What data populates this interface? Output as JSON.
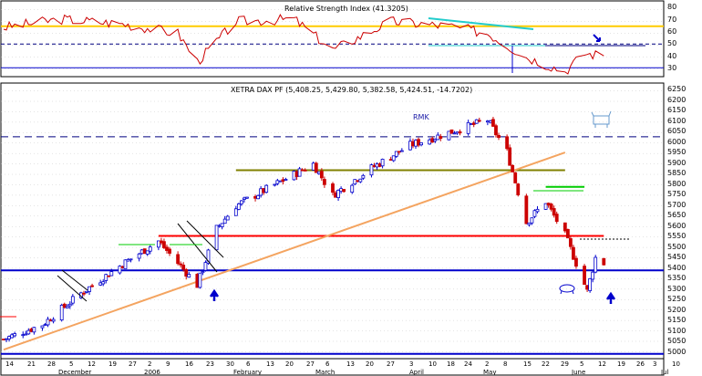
{
  "colors": {
    "rsi_line": "#cc0000",
    "candle_up": "#0000cc",
    "candle_down": "#cc0000",
    "trend_orange": "#f4a460",
    "olive_line": "#808000",
    "resistance_red": "#ff0000",
    "support_blue": "#0000cc",
    "green_line": "#00cc00",
    "cyan_line": "#22cccc",
    "yellow_line": "#ffcc00",
    "grid": "#c8c8c8"
  },
  "rsi_panel": {
    "title": "Relative Strength Index (41.3205)",
    "ticks": [
      "80",
      "70",
      "60",
      "50",
      "40",
      "30"
    ]
  },
  "price_panel": {
    "title": "XETRA DAX PF (5,408.25, 5,429.80, 5,382.58, 5,424.51, -14.7202)",
    "ticks": [
      "6250",
      "6200",
      "6150",
      "6100",
      "6050",
      "6000",
      "5950",
      "5900",
      "5850",
      "5800",
      "5750",
      "5700",
      "5650",
      "5600",
      "5550",
      "5500",
      "5450",
      "5400",
      "5350",
      "5300",
      "5250",
      "5200",
      "5150",
      "5100",
      "5050",
      "5000"
    ],
    "annotations": {
      "rmk": "RMK"
    }
  },
  "x_axis": {
    "day_labels": [
      "14",
      "21",
      "28",
      "5",
      "12",
      "19",
      "27",
      "2",
      "9",
      "16",
      "23",
      "30",
      "6",
      "13",
      "20",
      "27",
      "6",
      "13",
      "20",
      "27",
      "3",
      "10",
      "18",
      "24",
      "2",
      "8",
      "15",
      "22",
      "29",
      "5",
      "12",
      "19",
      "26",
      "3",
      "10"
    ],
    "month_labels": [
      "December",
      "2006",
      "February",
      "March",
      "April",
      "May",
      "June",
      "Jul"
    ]
  },
  "chart_data": {
    "type": "candlestick",
    "title": "XETRA DAX PF (5,408.25, 5,429.80, 5,382.58, 5,424.51, -14.7202)",
    "x_range": [
      "2005-11-14",
      "2006-07-10"
    ],
    "price_range": [
      4980,
      6270
    ],
    "price_checkpoints": [
      {
        "date": "2005-11-14",
        "close": 5060
      },
      {
        "date": "2005-11-28",
        "close": 5130
      },
      {
        "date": "2005-12-12",
        "close": 5280
      },
      {
        "date": "2005-12-27",
        "close": 5420
      },
      {
        "date": "2006-01-09",
        "close": 5530
      },
      {
        "date": "2006-01-23",
        "close": 5320
      },
      {
        "date": "2006-01-30",
        "close": 5590
      },
      {
        "date": "2006-02-06",
        "close": 5700
      },
      {
        "date": "2006-02-20",
        "close": 5800
      },
      {
        "date": "2006-03-06",
        "close": 5900
      },
      {
        "date": "2006-03-13",
        "close": 5750
      },
      {
        "date": "2006-03-27",
        "close": 5880
      },
      {
        "date": "2006-04-10",
        "close": 5990
      },
      {
        "date": "2006-04-24",
        "close": 6050
      },
      {
        "date": "2006-05-08",
        "close": 6110
      },
      {
        "date": "2006-05-15",
        "close": 5960
      },
      {
        "date": "2006-05-22",
        "close": 5620
      },
      {
        "date": "2006-05-29",
        "close": 5720
      },
      {
        "date": "2006-06-05",
        "close": 5560
      },
      {
        "date": "2006-06-13",
        "close": 5290
      },
      {
        "date": "2006-06-16",
        "close": 5450
      },
      {
        "date": "2006-06-19",
        "close": 5424.51
      }
    ],
    "horizontal_levels": [
      {
        "value": 6030,
        "color": "#000080",
        "style": "dashed"
      },
      {
        "value": 5870,
        "color": "#808000",
        "style": "solid",
        "from": "2006-02-06",
        "to": "2006-06-05"
      },
      {
        "value": 5790,
        "color": "#00cc00",
        "style": "solid",
        "from": "2006-05-29",
        "to": "2006-06-12"
      },
      {
        "value": 5555,
        "color": "#ff0000",
        "style": "solid",
        "from": "2006-01-09",
        "to": "2006-06-19"
      },
      {
        "value": 5390,
        "color": "#0000cc",
        "style": "solid"
      },
      {
        "value": 4990,
        "color": "#0000cc",
        "style": "solid"
      }
    ],
    "trendlines": [
      {
        "color": "#f4a460",
        "from": {
          "date": "2005-11-14",
          "value": 5010
        },
        "to": {
          "date": "2006-06-05",
          "value": 5955
        }
      }
    ],
    "rsi": {
      "value": 41.3205,
      "range": [
        25,
        85
      ],
      "levels": [
        {
          "value": 66,
          "color": "#ffcc00"
        },
        {
          "value": 51,
          "style": "dashed"
        },
        {
          "value": 31,
          "color": "#0000cc"
        }
      ],
      "checkpoints": [
        {
          "date": "2005-11-14",
          "value": 65
        },
        {
          "date": "2005-12-05",
          "value": 72
        },
        {
          "date": "2005-12-27",
          "value": 68
        },
        {
          "date": "2006-01-16",
          "value": 60
        },
        {
          "date": "2006-01-23",
          "value": 36
        },
        {
          "date": "2006-02-06",
          "value": 70
        },
        {
          "date": "2006-02-27",
          "value": 72
        },
        {
          "date": "2006-03-13",
          "value": 46
        },
        {
          "date": "2006-04-03",
          "value": 70
        },
        {
          "date": "2006-04-24",
          "value": 66
        },
        {
          "date": "2006-05-08",
          "value": 60
        },
        {
          "date": "2006-05-22",
          "value": 40
        },
        {
          "date": "2006-06-05",
          "value": 28
        },
        {
          "date": "2006-06-12",
          "value": 43
        },
        {
          "date": "2006-06-19",
          "value": 41.32
        }
      ]
    }
  }
}
